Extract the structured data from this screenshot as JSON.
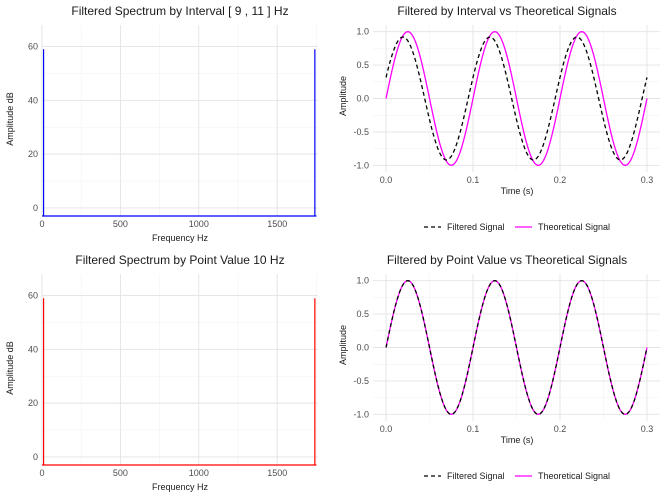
{
  "colors": {
    "interval_spectrum": "#0000ff",
    "point_spectrum": "#ff0000",
    "filtered_signal": "#000000",
    "theoretical_signal": "#ff00ff"
  },
  "chart_data": [
    {
      "id": "p1",
      "type": "line",
      "title": "Filtered Spectrum by Interval [ 9 , 11 ] Hz",
      "xlabel": "Frequency Hz",
      "ylabel": "Amplitude dB",
      "xlim": [
        0,
        1760
      ],
      "ylim": [
        -3,
        68
      ],
      "xticks": [
        0,
        500,
        1000,
        1500
      ],
      "xtick_labels": [
        "0",
        "500",
        "1000",
        "1500"
      ],
      "yticks": [
        0,
        20,
        40,
        60
      ],
      "ytick_labels": [
        "0",
        "20",
        "40",
        "60"
      ],
      "grid": true,
      "color": "#0000ff",
      "series": [
        {
          "x": [
            0,
            10,
            10,
            10,
            12,
            1738,
            1740,
            1740,
            1740,
            1750
          ],
          "y": [
            -3,
            -3,
            59,
            -3,
            -3,
            -3,
            -3,
            59,
            -3,
            -3
          ]
        }
      ]
    },
    {
      "id": "p2",
      "type": "line",
      "title": "Filtered by Interval vs Theoretical Signals",
      "xlabel": "Time (s)",
      "ylabel": "Amplitude",
      "xlim": [
        -0.015,
        0.315
      ],
      "ylim": [
        -1.1,
        1.1
      ],
      "xticks": [
        0,
        0.1,
        0.2,
        0.3
      ],
      "xtick_labels": [
        "0.0",
        "0.1",
        "0.2",
        "0.3"
      ],
      "yticks": [
        -1,
        -0.5,
        0,
        0.5,
        1
      ],
      "ytick_labels": [
        "-1.0",
        "-0.5",
        "0.0",
        "0.5",
        "1.0"
      ],
      "grid": true,
      "legend": "bottom",
      "series": [
        {
          "name": "Filtered Signal",
          "style": "dashed",
          "color": "#000000",
          "t_range": [
            0,
            0.3
          ],
          "freq": 10,
          "amp": 0.92,
          "phase": 0.35
        },
        {
          "name": "Theoretical Signal",
          "style": "solid",
          "color": "#ff00ff",
          "t_range": [
            0,
            0.3
          ],
          "freq": 10,
          "amp": 1.0,
          "phase": 0
        }
      ]
    },
    {
      "id": "p3",
      "type": "line",
      "title": "Filtered Spectrum by Point Value  10 Hz",
      "xlabel": "Frequency Hz",
      "ylabel": "Amplitude dB",
      "xlim": [
        0,
        1760
      ],
      "ylim": [
        -3,
        68
      ],
      "xticks": [
        0,
        500,
        1000,
        1500
      ],
      "xtick_labels": [
        "0",
        "500",
        "1000",
        "1500"
      ],
      "yticks": [
        0,
        20,
        40,
        60
      ],
      "ytick_labels": [
        "0",
        "20",
        "40",
        "60"
      ],
      "grid": true,
      "color": "#ff0000",
      "series": [
        {
          "x": [
            0,
            10,
            10,
            10,
            12,
            1738,
            1740,
            1740,
            1740,
            1750
          ],
          "y": [
            -3,
            -3,
            59,
            -3,
            -3,
            -3,
            -3,
            59,
            -3,
            -3
          ]
        }
      ]
    },
    {
      "id": "p4",
      "type": "line",
      "title": "Filtered by Point Value vs Theoretical Signals",
      "xlabel": "Time (s)",
      "ylabel": "Amplitude",
      "xlim": [
        -0.015,
        0.315
      ],
      "ylim": [
        -1.1,
        1.1
      ],
      "xticks": [
        0,
        0.1,
        0.2,
        0.3
      ],
      "xtick_labels": [
        "0.0",
        "0.1",
        "0.2",
        "0.3"
      ],
      "yticks": [
        -1,
        -0.5,
        0,
        0.5,
        1
      ],
      "ytick_labels": [
        "-1.0",
        "-0.5",
        "0.0",
        "0.5",
        "1.0"
      ],
      "grid": true,
      "legend": "bottom",
      "series": [
        {
          "name": "Filtered Signal",
          "style": "dashed",
          "color": "#000000",
          "t_range": [
            0,
            0.3
          ],
          "freq": 10,
          "amp": 1.0,
          "phase": 0
        },
        {
          "name": "Theoretical Signal",
          "style": "solid",
          "color": "#ff00ff",
          "t_range": [
            0,
            0.3
          ],
          "freq": 10,
          "amp": 1.0,
          "phase": 0
        }
      ]
    }
  ]
}
